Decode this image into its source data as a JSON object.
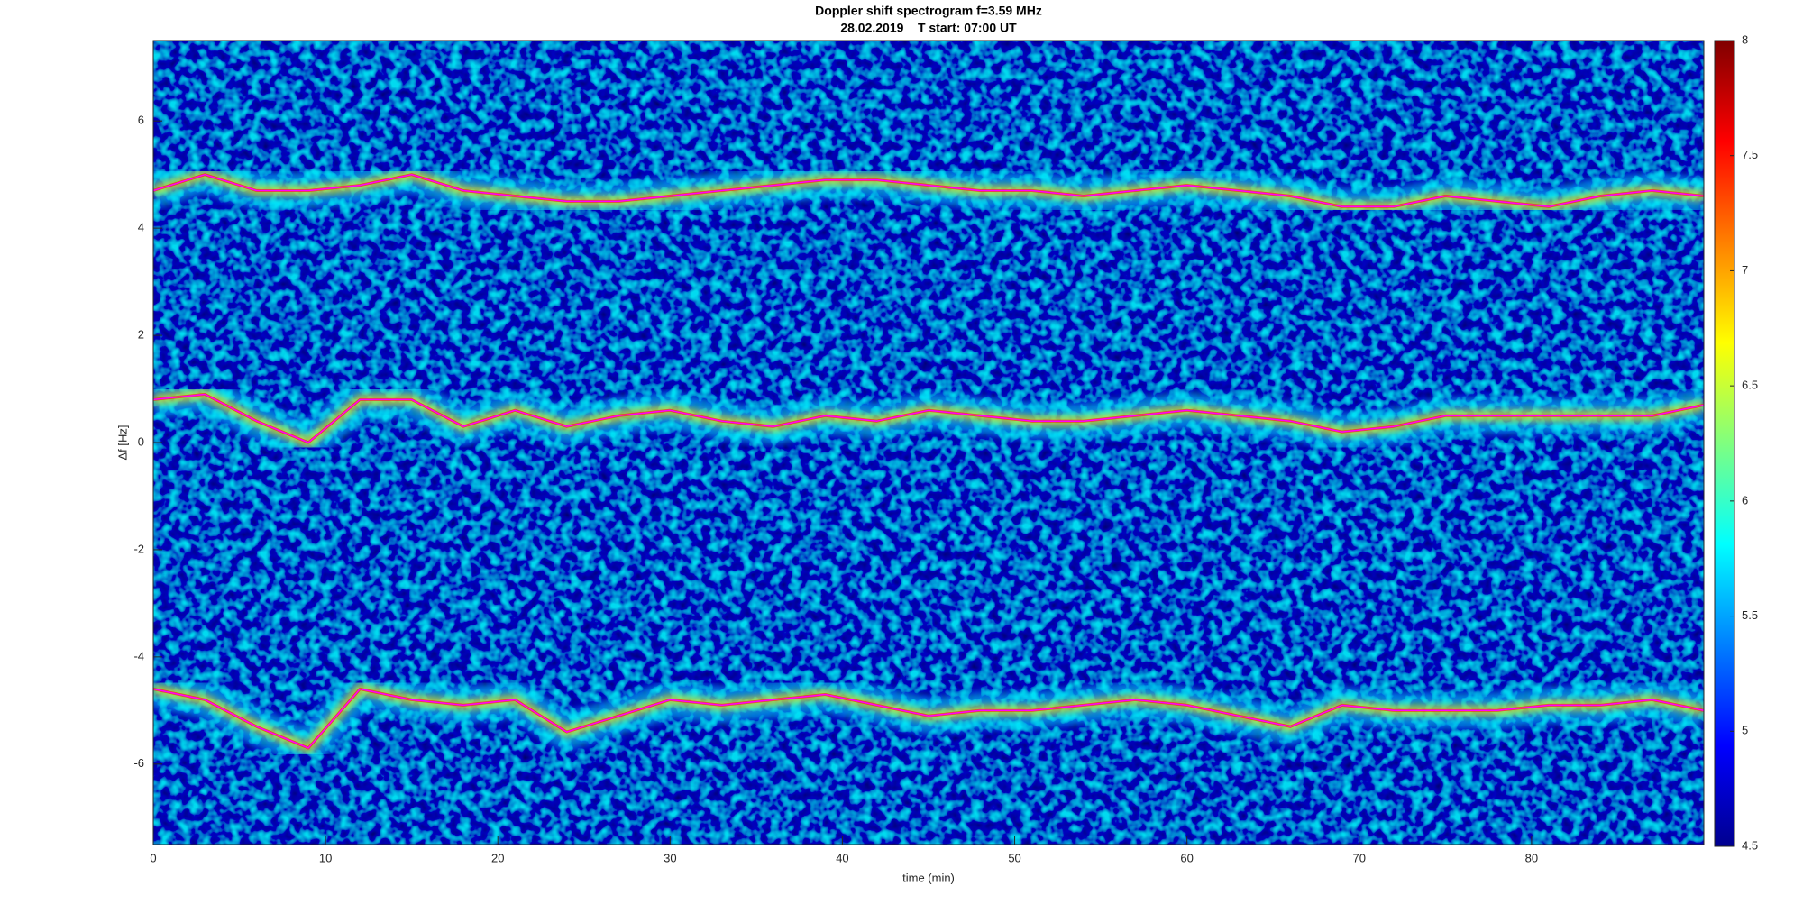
{
  "chart_data": {
    "type": "spectrogram",
    "title": "Doppler shift spectrogram f=3.59 MHz",
    "subtitle": "28.02.2019    T start: 07:00 UT",
    "x_label": "time (min)",
    "y_label": "Δf [Hz]",
    "xlim": [
      0,
      90
    ],
    "xticks": [
      0,
      10,
      20,
      30,
      40,
      50,
      60,
      70,
      80
    ],
    "ylim": [
      -7.5,
      7.5
    ],
    "yticks": [
      -6,
      -4,
      -2,
      0,
      2,
      4,
      6
    ],
    "colormap": "jet",
    "clim": [
      4.5,
      8
    ],
    "cticks": [
      4.5,
      5,
      5.5,
      6,
      6.5,
      7,
      7.5,
      8
    ],
    "x": [
      0,
      3,
      6,
      9,
      12,
      15,
      18,
      21,
      24,
      27,
      30,
      33,
      36,
      39,
      42,
      45,
      48,
      51,
      54,
      57,
      60,
      63,
      66,
      69,
      72,
      75,
      78,
      81,
      84,
      87,
      90
    ],
    "series": [
      {
        "color": "#ff00ff",
        "values": [
          4.7,
          5.0,
          4.7,
          4.7,
          4.8,
          5.0,
          4.7,
          4.6,
          4.5,
          4.5,
          4.6,
          4.7,
          4.8,
          4.9,
          4.9,
          4.8,
          4.7,
          4.7,
          4.6,
          4.7,
          4.8,
          4.7,
          4.6,
          4.4,
          4.4,
          4.6,
          4.5,
          4.4,
          4.6,
          4.7,
          4.6
        ]
      },
      {
        "color": "#ff00ff",
        "values": [
          0.8,
          0.9,
          0.4,
          0.0,
          0.8,
          0.8,
          0.3,
          0.6,
          0.3,
          0.5,
          0.6,
          0.4,
          0.3,
          0.5,
          0.4,
          0.6,
          0.5,
          0.4,
          0.4,
          0.5,
          0.6,
          0.5,
          0.4,
          0.2,
          0.3,
          0.5,
          0.5,
          0.5,
          0.5,
          0.5,
          0.7
        ]
      },
      {
        "color": "#ff00ff",
        "values": [
          -4.6,
          -4.8,
          -5.3,
          -5.7,
          -4.6,
          -4.8,
          -4.9,
          -4.8,
          -5.4,
          -5.1,
          -4.8,
          -4.9,
          -4.8,
          -4.7,
          -4.9,
          -5.1,
          -5.0,
          -5.0,
          -4.9,
          -4.8,
          -4.9,
          -5.1,
          -5.3,
          -4.9,
          -5.0,
          -5.0,
          -5.0,
          -4.9,
          -4.9,
          -4.8,
          -5.0
        ]
      }
    ]
  }
}
